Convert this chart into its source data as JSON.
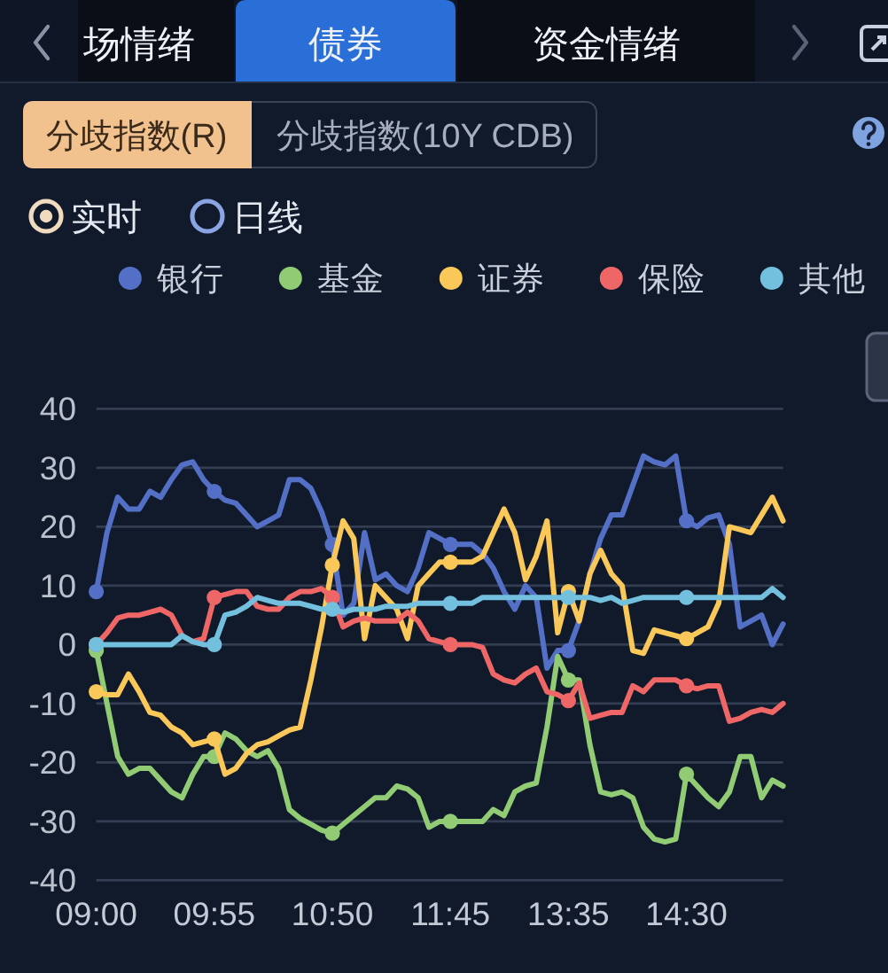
{
  "chart_data": {
    "type": "line",
    "annotations": [
      "场情绪",
      "债券",
      "资金情绪",
      "分歧指数(R)",
      "分歧指数(10Y CDB)",
      "实时",
      "日线"
    ],
    "categories": [
      "09:00",
      null,
      null,
      null,
      null,
      null,
      null,
      null,
      null,
      null,
      null,
      "09:55",
      null,
      null,
      null,
      null,
      null,
      null,
      null,
      null,
      null,
      null,
      "10:50",
      null,
      null,
      null,
      null,
      null,
      null,
      null,
      null,
      null,
      null,
      "11:45",
      null,
      null,
      null,
      null,
      null,
      null,
      null,
      null,
      null,
      null,
      "13:35",
      null,
      null,
      null,
      null,
      null,
      null,
      null,
      null,
      null,
      null,
      "14:30",
      null,
      null,
      null,
      null,
      null,
      null,
      null,
      null,
      null
    ],
    "series": [
      {
        "name": "银行",
        "color": "#5470c6",
        "values": [
          9,
          19,
          25,
          23,
          23,
          26,
          25,
          28,
          30.5,
          31,
          28,
          26,
          24.5,
          24,
          22,
          20,
          21,
          22,
          28,
          28,
          26.5,
          22.5,
          17,
          5,
          7,
          19,
          11,
          12,
          10,
          9,
          13,
          19,
          18,
          17,
          17,
          17,
          15.5,
          13,
          9,
          6,
          10,
          8,
          -4,
          -1,
          -1,
          4,
          12,
          18,
          22,
          22,
          27,
          32,
          31,
          30.5,
          32,
          21,
          20,
          21.5,
          22,
          17,
          3,
          4,
          5,
          0,
          3.5
        ]
      },
      {
        "name": "基金",
        "color": "#91cc75",
        "values": [
          -1,
          -10,
          -19,
          -22,
          -21,
          -21,
          -23,
          -25,
          -26,
          -22,
          -19,
          -19,
          -15,
          -16,
          -18,
          -19,
          -18,
          -21,
          -28,
          -29.5,
          -30.5,
          -31.5,
          -32,
          -30.5,
          -29,
          -27.5,
          -26,
          -26,
          -24,
          -24.5,
          -26,
          -31,
          -30,
          -30,
          -30,
          -30,
          -30,
          -28,
          -29,
          -25,
          -24,
          -23.5,
          -14,
          -2,
          -6,
          -6,
          -17,
          -25,
          -25.5,
          -25,
          -26,
          -31,
          -33,
          -33.5,
          -33,
          -22,
          -24,
          -26,
          -27.5,
          -25,
          -19,
          -19,
          -26,
          -23,
          -24
        ]
      },
      {
        "name": "证券",
        "color": "#fac858",
        "values": [
          -8,
          -8.5,
          -8.5,
          -5,
          -8,
          -11.5,
          -12,
          -14,
          -15,
          -17,
          -16.5,
          -16,
          -22,
          -21,
          -18.5,
          -17,
          -16.5,
          -15.5,
          -14.5,
          -14,
          -6,
          3,
          13.5,
          21,
          18,
          1,
          10,
          8,
          6,
          1,
          10,
          12,
          14,
          14,
          14,
          14,
          15,
          19,
          23,
          19,
          11,
          15,
          21,
          2,
          9,
          4,
          12,
          16,
          12,
          10,
          -1,
          -1.5,
          2.5,
          2,
          1.5,
          1,
          2,
          3,
          7,
          20,
          19.5,
          19,
          22,
          25,
          21
        ]
      },
      {
        "name": "保险",
        "color": "#ee6666",
        "values": [
          0,
          2,
          4.5,
          5,
          5,
          5.5,
          6,
          5,
          1.5,
          0.5,
          1,
          8,
          8.5,
          9,
          9,
          6.5,
          6,
          6,
          8,
          9,
          9,
          9.5,
          8,
          3,
          4,
          4.5,
          4,
          4,
          4,
          5.5,
          4,
          1,
          0.5,
          0,
          0,
          0,
          -0.5,
          -5,
          -6,
          -6.5,
          -5,
          -4,
          -8,
          -8.5,
          -9.5,
          -6.5,
          -12.5,
          -12,
          -11.5,
          -11.5,
          -7,
          -8,
          -6,
          -6,
          -6,
          -7,
          -7.5,
          -7,
          -7,
          -13,
          -12.5,
          -11.5,
          -11,
          -11.5,
          -10
        ]
      },
      {
        "name": "其他",
        "color": "#73c0de",
        "values": [
          0,
          0,
          0,
          0,
          0,
          0,
          0,
          0,
          1.5,
          0.5,
          0,
          0,
          5,
          5.5,
          6.5,
          8,
          7.5,
          7,
          7,
          7,
          6.5,
          6,
          6,
          5.5,
          6,
          6,
          6,
          6.5,
          6.5,
          6.5,
          7,
          7,
          7,
          7,
          7,
          7,
          8,
          8,
          8,
          8,
          8,
          8,
          8,
          8,
          8,
          8,
          8,
          7.5,
          8,
          7,
          7.5,
          8,
          8,
          8,
          8,
          8,
          8,
          8,
          8,
          8,
          8,
          8,
          8,
          9.5,
          8
        ]
      }
    ],
    "ylim": [
      -40,
      40
    ],
    "yticks": [
      -40,
      -30,
      -20,
      -10,
      0,
      10,
      20,
      30,
      40
    ],
    "grid": "y",
    "legend": "top",
    "line_style": "solid"
  }
}
